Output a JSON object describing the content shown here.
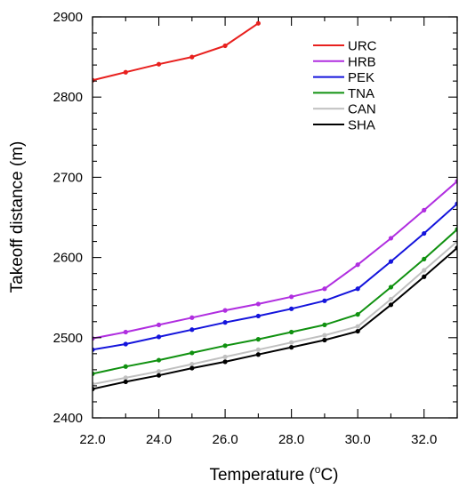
{
  "chart_data": {
    "type": "line",
    "title": "",
    "xlabel": "Temperature (",
    "xlabel_sup": "o",
    "xlabel_suffix": "C)",
    "ylabel": "Takeoff distance (m)",
    "xlim": [
      22,
      33
    ],
    "ylim": [
      2400,
      2900
    ],
    "x_ticks": [
      22,
      24,
      26,
      28,
      30,
      32
    ],
    "x_tick_labels": [
      "22.0",
      "24.0",
      "26.0",
      "28.0",
      "30.0",
      "32.0"
    ],
    "y_ticks": [
      2400,
      2500,
      2600,
      2700,
      2800,
      2900
    ],
    "y_tick_labels": [
      "2400",
      "2500",
      "2600",
      "2700",
      "2800",
      "2900"
    ],
    "legend_position": "top-right",
    "grid": false,
    "series": [
      {
        "name": "URC",
        "color": "#e8201e",
        "x": [
          22,
          23,
          24,
          25,
          26,
          27
        ],
        "y": [
          2821,
          2831,
          2841,
          2850,
          2864,
          2892
        ]
      },
      {
        "name": "HRB",
        "color": "#b02ee0",
        "x": [
          22,
          23,
          24,
          25,
          26,
          27,
          28,
          29,
          30,
          31,
          32,
          33
        ],
        "y": [
          2499,
          2507,
          2516,
          2525,
          2534,
          2542,
          2551,
          2561,
          2591,
          2624,
          2659,
          2695
        ]
      },
      {
        "name": "PEK",
        "color": "#1414dc",
        "x": [
          22,
          23,
          24,
          25,
          26,
          27,
          28,
          29,
          30,
          31,
          32,
          33
        ],
        "y": [
          2485,
          2492,
          2501,
          2510,
          2519,
          2527,
          2536,
          2546,
          2561,
          2595,
          2630,
          2667
        ]
      },
      {
        "name": "TNA",
        "color": "#109110",
        "x": [
          22,
          23,
          24,
          25,
          26,
          27,
          28,
          29,
          30,
          31,
          32,
          33
        ],
        "y": [
          2455,
          2464,
          2472,
          2481,
          2490,
          2498,
          2507,
          2516,
          2529,
          2563,
          2598,
          2635
        ]
      },
      {
        "name": "CAN",
        "color": "#c0c0c0",
        "x": [
          22,
          23,
          24,
          25,
          26,
          27,
          28,
          29,
          30,
          31,
          32,
          33
        ],
        "y": [
          2442,
          2450,
          2458,
          2467,
          2476,
          2485,
          2494,
          2503,
          2514,
          2548,
          2584,
          2620
        ]
      },
      {
        "name": "SHA",
        "color": "#000000",
        "x": [
          22,
          23,
          24,
          25,
          26,
          27,
          28,
          29,
          30,
          31,
          32,
          33
        ],
        "y": [
          2436,
          2445,
          2453,
          2462,
          2470,
          2479,
          2488,
          2497,
          2508,
          2541,
          2576,
          2612
        ]
      }
    ]
  }
}
